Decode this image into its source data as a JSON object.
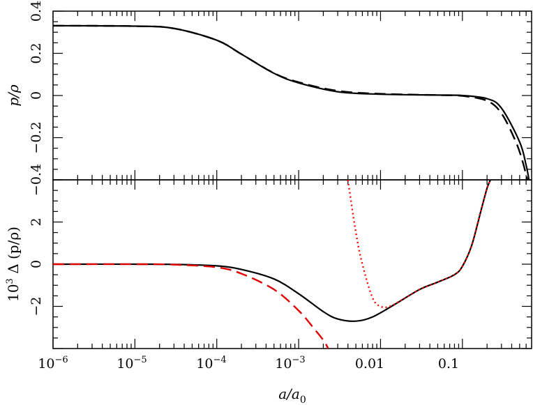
{
  "chart_data": [
    {
      "panel": "top",
      "type": "line",
      "ylabel": "p/ρ",
      "x_scale": "log",
      "xlim": [
        1e-06,
        0.7
      ],
      "ylim": [
        -0.4,
        0.4
      ],
      "yticks": [
        "−0.4",
        "−0.2",
        "0",
        "0.2",
        "0.4"
      ],
      "series": [
        {
          "style": "solid",
          "color": "#000000",
          "x": [
            1e-06,
            1e-05,
            3e-05,
            0.0001,
            0.0002,
            0.0005,
            0.001,
            0.003,
            0.01,
            0.05,
            0.1,
            0.2,
            0.3,
            0.5,
            0.6,
            0.65
          ],
          "y": [
            0.331,
            0.329,
            0.318,
            0.262,
            0.196,
            0.105,
            0.06,
            0.018,
            0.006,
            0.002,
            0.0,
            -0.015,
            -0.06,
            -0.22,
            -0.33,
            -0.4
          ]
        },
        {
          "style": "dashed",
          "color": "#000000",
          "x": [
            1e-06,
            1e-05,
            3e-05,
            0.0001,
            0.0002,
            0.0005,
            0.001,
            0.003,
            0.01,
            0.05,
            0.1,
            0.2,
            0.3,
            0.45,
            0.55,
            0.62
          ],
          "y": [
            0.331,
            0.329,
            0.318,
            0.262,
            0.196,
            0.106,
            0.063,
            0.022,
            0.008,
            0.002,
            -0.002,
            -0.025,
            -0.085,
            -0.22,
            -0.32,
            -0.4
          ]
        }
      ]
    },
    {
      "panel": "bottom",
      "type": "line",
      "xlabel": "a/a0",
      "ylabel": "10^3 Δ (p/ρ)",
      "x_scale": "log",
      "xlim": [
        1e-06,
        0.7
      ],
      "ylim": [
        -4,
        4
      ],
      "xticks": [
        "10^-6",
        "10^-5",
        "10^-4",
        "10^-3",
        "0.01",
        "0.1"
      ],
      "yticks": [
        "−2",
        "0",
        "2"
      ],
      "series": [
        {
          "style": "solid",
          "color": "#000000",
          "x": [
            1e-06,
            1e-05,
            3e-05,
            0.0001,
            0.0002,
            0.0005,
            0.001,
            0.002,
            0.003,
            0.005,
            0.008,
            0.015,
            0.03,
            0.05,
            0.08,
            0.1,
            0.13,
            0.17,
            0.2,
            0.22
          ],
          "y": [
            0.0,
            0.0,
            -0.01,
            -0.08,
            -0.25,
            -0.7,
            -1.4,
            -2.25,
            -2.6,
            -2.7,
            -2.5,
            -1.9,
            -1.2,
            -0.85,
            -0.5,
            -0.1,
            0.9,
            2.6,
            3.6,
            4.0
          ]
        },
        {
          "style": "dashed",
          "color": "#e00000",
          "x": [
            1e-06,
            1e-05,
            3e-05,
            0.0001,
            0.0002,
            0.0005,
            0.001,
            0.0015,
            0.002,
            0.0023
          ],
          "y": [
            0.0,
            0.0,
            -0.02,
            -0.15,
            -0.45,
            -1.2,
            -2.2,
            -3.0,
            -3.6,
            -4.0
          ]
        },
        {
          "style": "dotted",
          "color": "#ff0000",
          "x": [
            0.004,
            0.005,
            0.006,
            0.008,
            0.01,
            0.013,
            0.02,
            0.03,
            0.05,
            0.08,
            0.1,
            0.13,
            0.17,
            0.2,
            0.22
          ],
          "y": [
            4.0,
            1.5,
            0.0,
            -1.6,
            -2.0,
            -2.0,
            -1.6,
            -1.2,
            -0.85,
            -0.5,
            -0.1,
            0.9,
            2.6,
            3.6,
            4.0
          ]
        }
      ]
    }
  ]
}
